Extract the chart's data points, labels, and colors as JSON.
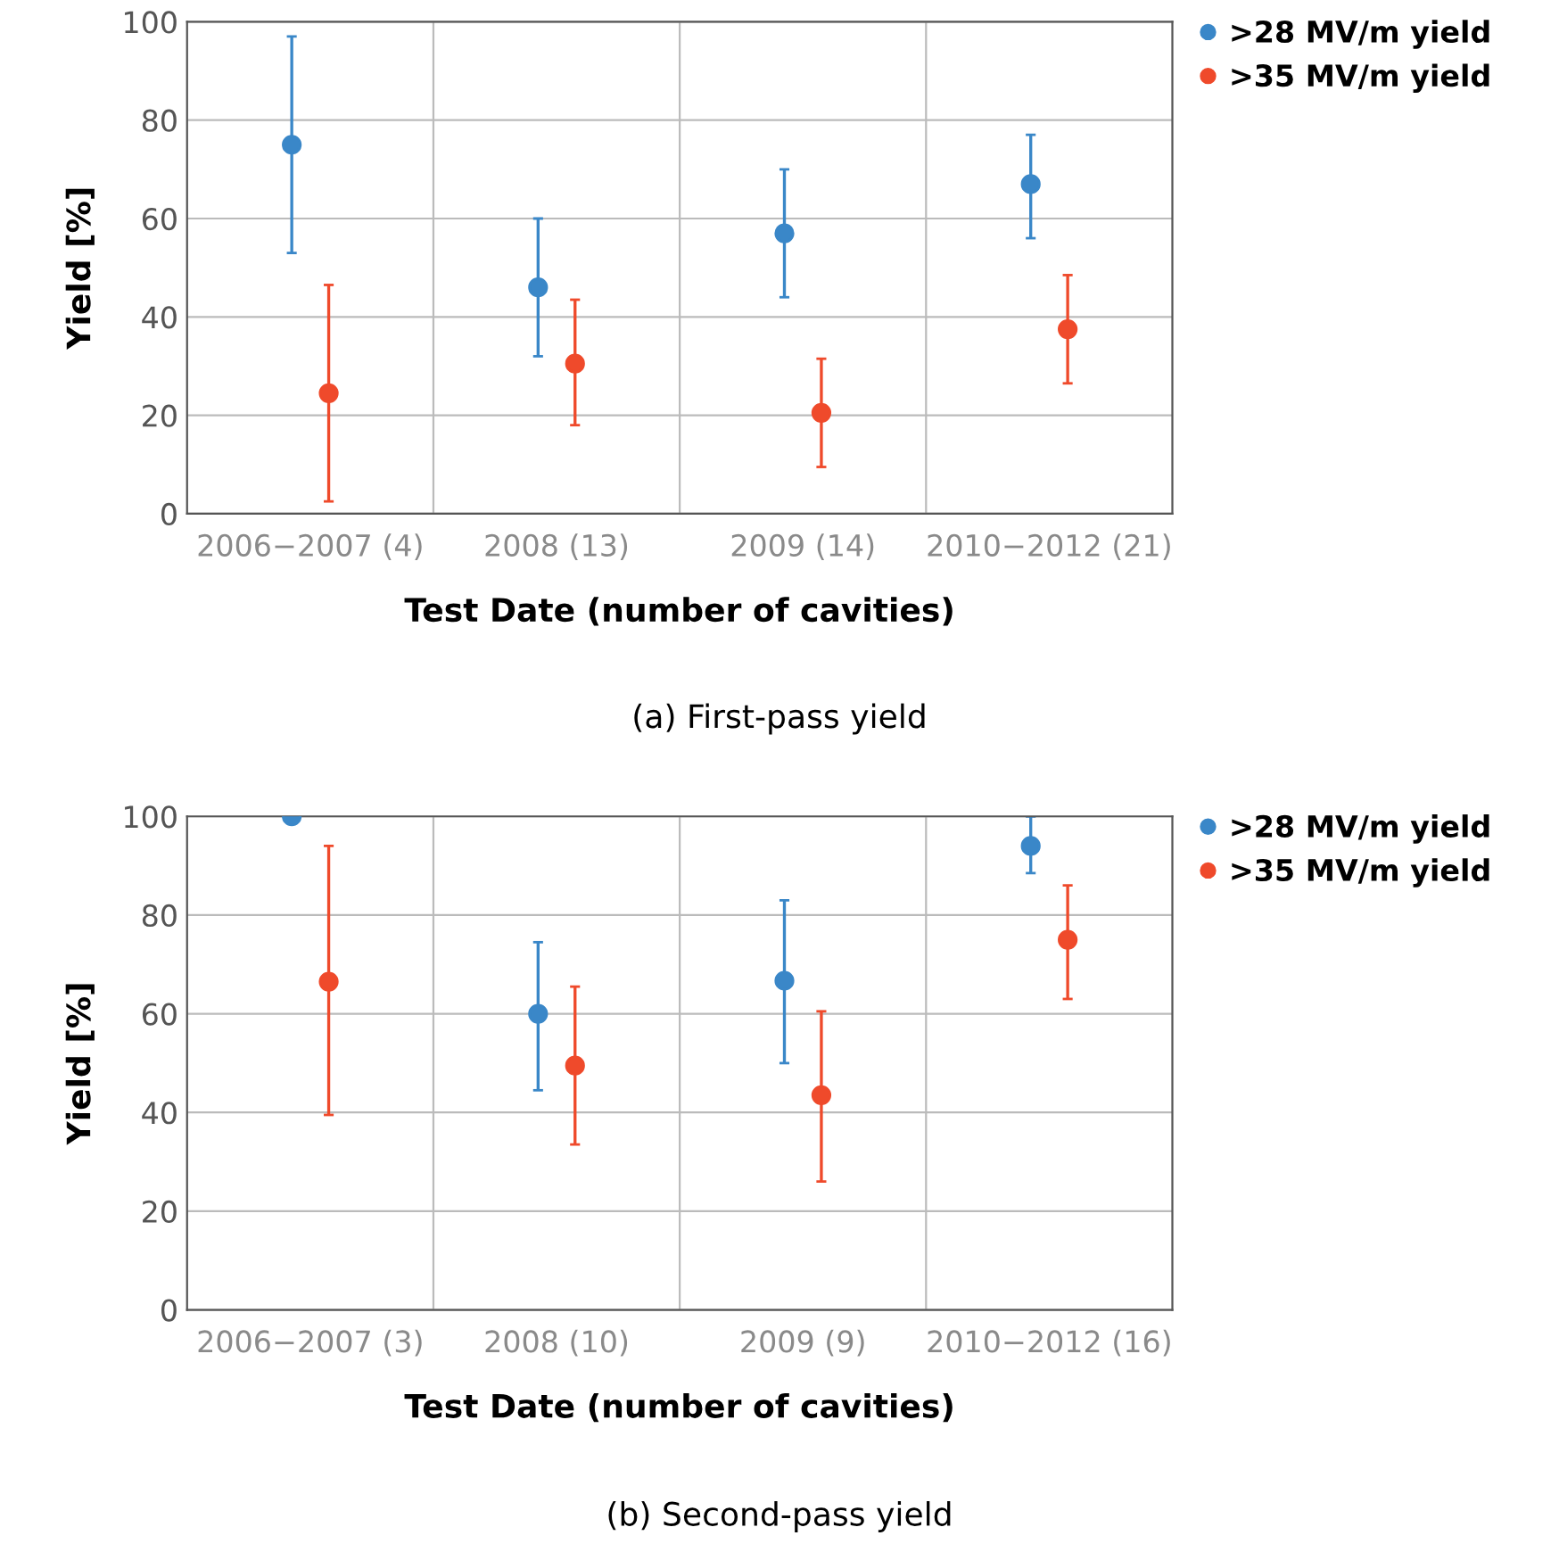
{
  "chart_data": [
    {
      "type": "scatter",
      "xlabel": "Test Date (number of cavities)",
      "ylabel": "Yield [%]",
      "categories": [
        "2006−2007 (4)",
        "2008 (13)",
        "2009 (14)",
        "2010−2012 (21)"
      ],
      "ylim": [
        0,
        100
      ],
      "yticks": [
        0,
        20,
        40,
        60,
        80,
        100
      ],
      "grid": true,
      "legend": "right",
      "marker": "circle",
      "annotations": [
        "(a) First-pass yield"
      ],
      "series": [
        {
          "name": ">28 MV/m yield",
          "color": "#3a87c8",
          "values": [
            75,
            46,
            57,
            67
          ],
          "errors": [
            [
              53,
              97
            ],
            [
              32,
              60
            ],
            [
              44,
              70
            ],
            [
              56,
              77
            ]
          ]
        },
        {
          "name": ">35 MV/m yield",
          "color": "#ef4a2b",
          "values": [
            24.5,
            30.5,
            20.5,
            37.5
          ],
          "errors": [
            [
              2.5,
              46.5
            ],
            [
              18,
              43.5
            ],
            [
              9.5,
              31.5
            ],
            [
              26.5,
              48.5
            ]
          ]
        }
      ]
    },
    {
      "type": "scatter",
      "xlabel": "Test Date (number of cavities)",
      "ylabel": "Yield [%]",
      "categories": [
        "2006−2007 (3)",
        "2008 (10)",
        "2009 (9)",
        "2010−2012 (16)"
      ],
      "ylim": [
        0,
        100
      ],
      "yticks": [
        0,
        20,
        40,
        60,
        80,
        100
      ],
      "grid": true,
      "legend": "right",
      "marker": "circle",
      "annotations": [
        "(b) Second-pass yield"
      ],
      "series": [
        {
          "name": ">28 MV/m yield",
          "color": "#3a87c8",
          "values": [
            100,
            60,
            66.7,
            94
          ],
          "errors": [
            null,
            [
              44.5,
              74.5
            ],
            [
              50,
              83
            ],
            [
              88.5,
              100
            ]
          ]
        },
        {
          "name": ">35 MV/m yield",
          "color": "#ef4a2b",
          "values": [
            66.5,
            49.5,
            43.5,
            75
          ],
          "errors": [
            [
              39.5,
              94
            ],
            [
              33.5,
              65.5
            ],
            [
              26,
              60.5
            ],
            [
              63,
              86
            ]
          ]
        }
      ]
    }
  ]
}
